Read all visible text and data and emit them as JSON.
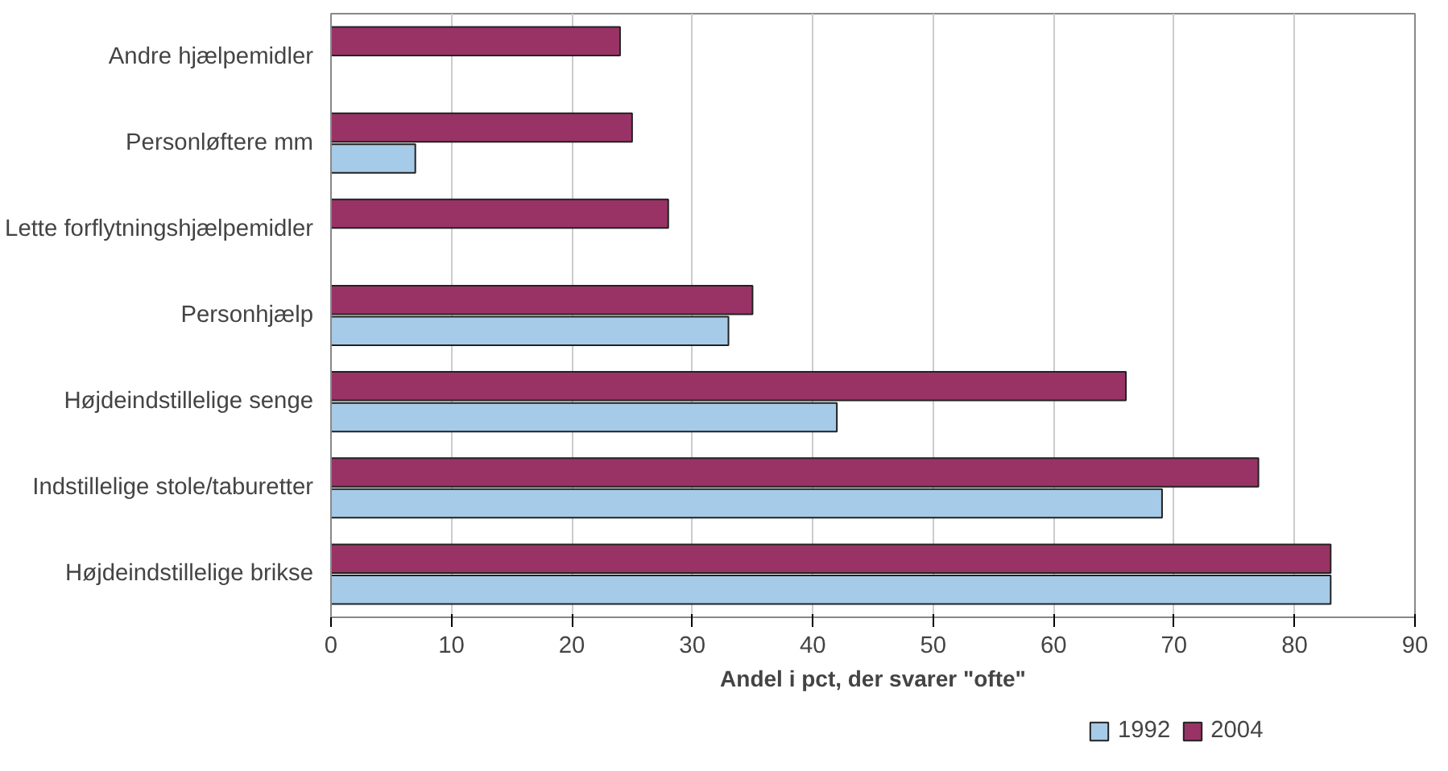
{
  "chart_data": {
    "type": "bar",
    "orientation": "horizontal",
    "xlabel": "Andel i pct, der svarer \"ofte\"",
    "categories": [
      "Andre hjælpemidler",
      "Personløftere mm",
      "Lette forflytningshjælpemidler",
      "Personhjælp",
      "Højdeindstillelige senge",
      "Indstillelige stole/taburetter",
      "Højdeindstillelige brikse"
    ],
    "series": [
      {
        "name": "1992",
        "color": "#a6cbe8",
        "values": [
          null,
          7,
          null,
          33,
          42,
          69,
          83
        ]
      },
      {
        "name": "2004",
        "color": "#993366",
        "values": [
          24,
          25,
          28,
          35,
          66,
          77,
          83
        ]
      }
    ],
    "xlim": [
      0,
      90
    ],
    "xticks": [
      0,
      10,
      20,
      30,
      40,
      50,
      60,
      70,
      80,
      90
    ],
    "grid": "x",
    "legend": "bottom"
  }
}
